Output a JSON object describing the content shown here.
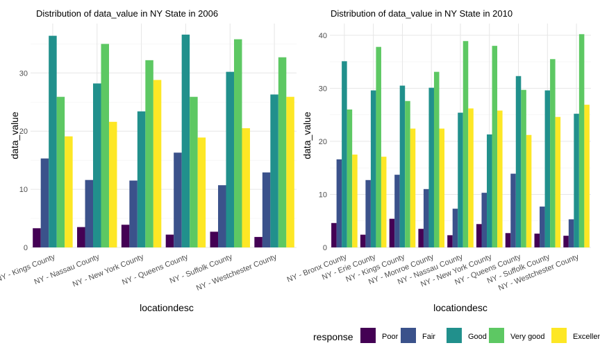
{
  "chart_data": [
    {
      "type": "bar",
      "title": "Distribution of data_value in NY State in 2006",
      "xlabel": "locationdesc",
      "ylabel": "data_value",
      "ylim": [
        0,
        38.5
      ],
      "yticks": [
        0,
        10,
        20,
        30
      ],
      "grid": true,
      "categories": [
        "NY - Kings County",
        "NY - Nassau County",
        "NY - New York County",
        "NY - Queens County",
        "NY - Suffolk County",
        "NY - Westchester County"
      ],
      "series": [
        {
          "name": "Poor",
          "values": [
            3.3,
            3.5,
            3.9,
            2.2,
            2.7,
            1.8
          ]
        },
        {
          "name": "Fair",
          "values": [
            15.3,
            11.6,
            11.5,
            16.3,
            10.7,
            12.9
          ]
        },
        {
          "name": "Good",
          "values": [
            36.4,
            28.2,
            23.4,
            36.6,
            30.2,
            26.3
          ]
        },
        {
          "name": "Very good",
          "values": [
            25.9,
            35.0,
            32.2,
            25.9,
            35.8,
            32.7
          ]
        },
        {
          "name": "Excellent",
          "values": [
            19.1,
            21.6,
            28.8,
            18.9,
            20.5,
            25.9
          ]
        }
      ]
    },
    {
      "type": "bar",
      "title": "Distribution of data_value in NY State in 2010",
      "xlabel": "locationdesc",
      "ylabel": "data_value",
      "ylim": [
        0,
        42.2
      ],
      "yticks": [
        0,
        10,
        20,
        30,
        40
      ],
      "grid": true,
      "categories": [
        "NY - Bronx County",
        "NY - Erie County",
        "NY - Kings County",
        "NY - Monroe County",
        "NY - Nassau County",
        "NY - New York County",
        "NY - Queens County",
        "NY - Suffolk County",
        "NY - Westchester County"
      ],
      "series": [
        {
          "name": "Poor",
          "values": [
            4.6,
            2.4,
            5.4,
            3.5,
            2.3,
            4.4,
            2.7,
            2.6,
            2.2
          ]
        },
        {
          "name": "Fair",
          "values": [
            16.6,
            12.7,
            13.7,
            11.0,
            7.3,
            10.3,
            13.9,
            7.7,
            5.3
          ]
        },
        {
          "name": "Good",
          "values": [
            35.1,
            29.6,
            30.5,
            30.1,
            25.4,
            21.3,
            32.3,
            29.6,
            25.2
          ]
        },
        {
          "name": "Very good",
          "values": [
            26.0,
            37.8,
            27.6,
            33.1,
            38.9,
            38.0,
            29.7,
            35.5,
            40.2
          ]
        },
        {
          "name": "Excellent",
          "values": [
            17.5,
            17.1,
            22.4,
            22.4,
            26.2,
            25.8,
            21.2,
            24.6,
            26.9
          ]
        }
      ]
    }
  ],
  "legend": {
    "title": "response",
    "position": "bottom",
    "items": [
      {
        "label": "Poor",
        "color": "#440154"
      },
      {
        "label": "Fair",
        "color": "#3B528B"
      },
      {
        "label": "Good",
        "color": "#21908C"
      },
      {
        "label": "Very good",
        "color": "#5DC863"
      },
      {
        "label": "Excellent",
        "color": "#FDE725"
      }
    ]
  }
}
